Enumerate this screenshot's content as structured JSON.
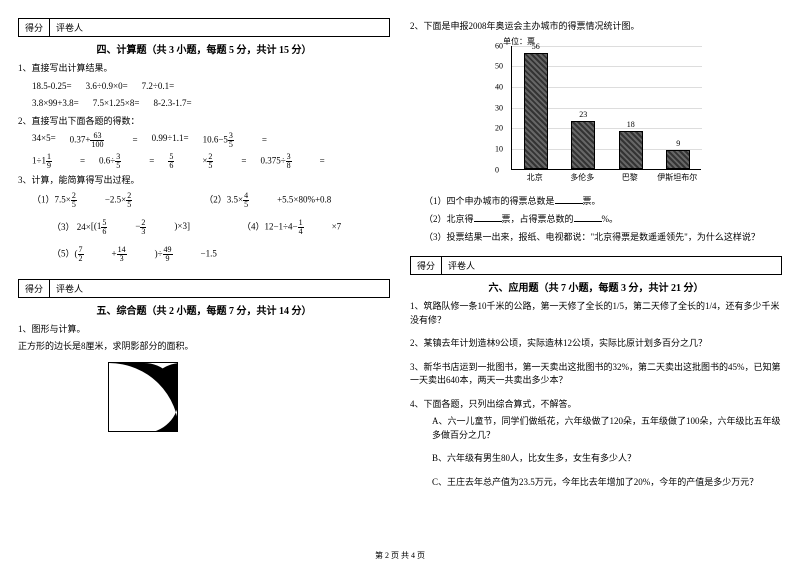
{
  "score_labels": {
    "score": "得分",
    "grader": "评卷人"
  },
  "section4": {
    "title": "四、计算题（共 3 小题，每题 5 分，共计 15 分）",
    "q1": "1、直接写出计算结果。",
    "q1_items": [
      "18.5-0.25=",
      "3.6÷0.9×0=",
      "7.2÷0.1=",
      "3.8×99+3.8=",
      "7.5×1.25×8=",
      "8-2.3-1.7="
    ],
    "q2": "2、直接写出下面各题的得数：",
    "q3": "3、计算，能简算得写出过程。"
  },
  "section5": {
    "title": "五、综合题（共 2 小题，每题 7 分，共计 14 分）",
    "q1": "1、图形与计算。",
    "q1b": "正方形的边长是8厘米，求阴影部分的面积。"
  },
  "rightTop": "2、下面是申报2008年奥运会主办城市的得票情况统计图。",
  "chart": {
    "unit": "单位：票",
    "ymax": 60,
    "ystep": 10,
    "categories": [
      "北京",
      "多伦多",
      "巴黎",
      "伊斯坦布尔"
    ],
    "values": [
      56,
      23,
      18,
      9
    ],
    "bar_color": "#555555",
    "grid_color": "#dddddd"
  },
  "chart_q": [
    "（1）四个申办城市的得票总数是________票。",
    "（2）北京得________票，占得票总数的________%。",
    "（3）投票结果一出来，报纸、电视都说：\"北京得票是数遥遥领先\"，为什么这样说？"
  ],
  "section6": {
    "title": "六、应用题（共 7 小题，每题 3 分，共计 21 分）",
    "items": [
      "1、筑路队修一条10千米的公路，第一天修了全长的1/5，第二天修了全长的1/4，还有多少千米没有修？",
      "2、某镇去年计划造林9公顷，实际造林12公顷，实际比原计划多百分之几？",
      "3、新华书店运到一批图书，第一天卖出这批图书的32%，第二天卖出这批图书的45%，已知第一天卖出640本，两天一共卖出多少本？",
      "4、下面各题，只列出综合算式，不解答。",
      "A、六一儿童节，同学们做纸花，六年级做了120朵，五年级做了100朵，六年级比五年级多做百分之几？",
      "B、六年级有男生80人，比女生多，女生有多少人？",
      "C、王庄去年总产值为23.5万元，今年比去年增加了20%，今年的产值是多少万元？"
    ]
  },
  "footer": "第 2 页 共 4 页"
}
